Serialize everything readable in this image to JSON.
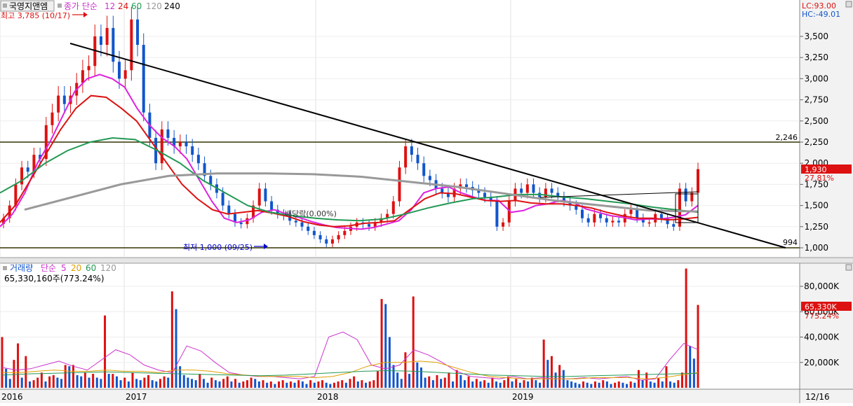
{
  "price_panel": {
    "stock_name": "국영지앤엠",
    "ma_label": "종가 단순",
    "ma_periods": [
      "12",
      "24",
      "60",
      "120",
      "240"
    ],
    "high_label": "최고 3,785 (10/17)",
    "low_label": "최저 1,000 (09/25)",
    "dividend_label": "배당락(0.00%)",
    "lc_label": "LC:93.00",
    "hc_label": "HC:-49.01",
    "current_price": "1,930",
    "current_change": "27.81%",
    "resistance_label": "2,246",
    "support_label": "994"
  },
  "volume_panel": {
    "title": "거래량",
    "ma_label": "단순",
    "ma_periods": [
      "5",
      "20",
      "60",
      "120"
    ],
    "current_volume": "65,330,160주(773.24%)",
    "current_box": "65,330K",
    "current_change": "773.24%"
  },
  "x_axis": {
    "labels": [
      "2016",
      "2017",
      "2018",
      "2019"
    ],
    "last_label": "12/16"
  },
  "colors": {
    "ma12": "#dd22dd",
    "ma24": "#dd1111",
    "ma60": "#229955",
    "ma120": "#999999",
    "up": "#dd1111",
    "down": "#1155cc",
    "trend": "#000000",
    "hline": "#333300"
  },
  "chart_data": [
    {
      "type": "candlestick",
      "period": "weekly",
      "x_range": [
        "2016-01",
        "2019-12-16"
      ],
      "ylim": [
        900,
        3950
      ],
      "y_ticks": [
        1000,
        1250,
        1500,
        1750,
        2000,
        2250,
        2500,
        2750,
        3000,
        3250,
        3500
      ],
      "close_series": [
        1350,
        1500,
        1750,
        1950,
        1900,
        2100,
        2050,
        2450,
        2600,
        2800,
        2700,
        2800,
        2950,
        3100,
        3150,
        3500,
        3400,
        3600,
        3200,
        3000,
        3100,
        3700,
        3400,
        2600,
        2300,
        2000,
        2400,
        2300,
        2200,
        2250,
        2200,
        2100,
        2000,
        1850,
        1750,
        1650,
        1500,
        1400,
        1300,
        1280,
        1350,
        1500,
        1700,
        1550,
        1450,
        1400,
        1380,
        1320,
        1300,
        1250,
        1200,
        1150,
        1100,
        1050,
        1100,
        1150,
        1200,
        1250,
        1300,
        1280,
        1250,
        1300,
        1350,
        1400,
        1550,
        1950,
        2200,
        2100,
        2000,
        1850,
        1800,
        1700,
        1650,
        1600,
        1700,
        1750,
        1720,
        1680,
        1650,
        1600,
        1550,
        1250,
        1300,
        1550,
        1700,
        1650,
        1750,
        1650,
        1600,
        1700,
        1650,
        1600,
        1550,
        1500,
        1450,
        1350,
        1300,
        1400,
        1350,
        1300,
        1320,
        1300,
        1400,
        1450,
        1350,
        1300,
        1300,
        1400,
        1350,
        1280,
        1250,
        1700,
        1550,
        1650,
        1930
      ],
      "series": [
        {
          "name": "12",
          "values": [
            1250,
            1400,
            1650,
            2000,
            2250,
            2550,
            2850,
            3000,
            3050,
            3000,
            2900,
            2650,
            2450,
            2300,
            2200,
            2050,
            1800,
            1550,
            1350,
            1300,
            1330,
            1420,
            1450,
            1400,
            1360,
            1310,
            1270,
            1240,
            1230,
            1220,
            1240,
            1280,
            1320,
            1450,
            1650,
            1700,
            1720,
            1650,
            1600,
            1560,
            1560,
            1420,
            1440,
            1500,
            1520,
            1560,
            1540,
            1460,
            1420,
            1380,
            1360,
            1330,
            1340,
            1340,
            1360,
            1390,
            1500
          ]
        },
        {
          "name": "24",
          "values": [
            1300,
            1500,
            1800,
            2100,
            2400,
            2650,
            2800,
            2780,
            2650,
            2500,
            2250,
            2000,
            1750,
            1580,
            1450,
            1400,
            1420,
            1440,
            1410,
            1370,
            1310,
            1270,
            1250,
            1260,
            1290,
            1300,
            1320,
            1450,
            1580,
            1650,
            1640,
            1600,
            1560,
            1550,
            1560,
            1530,
            1520,
            1520,
            1500,
            1470,
            1420,
            1380,
            1350,
            1350,
            1330,
            1340,
            1360
          ]
        },
        {
          "name": "60",
          "values": [
            1650,
            1800,
            2000,
            2150,
            2250,
            2300,
            2280,
            2150,
            2000,
            1800,
            1650,
            1500,
            1420,
            1380,
            1350,
            1330,
            1320,
            1340,
            1400,
            1470,
            1530,
            1580,
            1600,
            1630,
            1630,
            1600,
            1580,
            1550,
            1520,
            1480,
            1450,
            1420
          ]
        },
        {
          "name": "120",
          "values": [
            1450,
            1600,
            1750,
            1850,
            1880,
            1880,
            1870,
            1840,
            1780,
            1720,
            1640,
            1560,
            1500,
            1440,
            1430
          ]
        }
      ],
      "annotations": [
        {
          "text": "최고 3,785 (10/17)",
          "value": 3785
        },
        {
          "text": "최저 1,000 (09/25)",
          "value": 1000
        },
        {
          "text": "배당락(0.00%)"
        },
        {
          "text": "2,246",
          "value": 2246
        },
        {
          "text": "994",
          "value": 994
        },
        {
          "text": "1,930",
          "value": 1930
        },
        {
          "text": "27.81%"
        }
      ]
    },
    {
      "type": "bar",
      "title": "거래량",
      "ylim": [
        0,
        100000
      ],
      "y_ticks": [
        "20,000K",
        "40,000K",
        "60,000K",
        "80,000K"
      ],
      "tick_values": [
        20000,
        40000,
        60000,
        80000
      ],
      "values": [
        40000,
        15000,
        7000,
        22000,
        35000,
        8000,
        25000,
        5000,
        6000,
        8000,
        12000,
        5000,
        9000,
        10000,
        8000,
        7000,
        18000,
        17000,
        18000,
        10000,
        9000,
        12000,
        8000,
        11000,
        8000,
        7000,
        57000,
        11000,
        11000,
        9000,
        6000,
        8000,
        5000,
        12000,
        7000,
        6000,
        8000,
        10000,
        6000,
        5000,
        7000,
        9000,
        8000,
        76000,
        62000,
        17000,
        10000,
        8000,
        7000,
        6000,
        11000,
        7000,
        4000,
        8000,
        6000,
        5000,
        7000,
        9000,
        5000,
        7000,
        4000,
        5000,
        6000,
        8000,
        7000,
        5000,
        6000,
        4000,
        5000,
        3000,
        5000,
        6000,
        4000,
        5000,
        4000,
        6000,
        5000,
        3000,
        6000,
        4000,
        5000,
        6000,
        4000,
        3000,
        4000,
        5000,
        6000,
        4000,
        7000,
        9000,
        5000,
        6000,
        4000,
        5000,
        6000,
        13000,
        70000,
        66000,
        40000,
        18000,
        12000,
        7000,
        28000,
        11000,
        72000,
        20000,
        16000,
        8000,
        9000,
        6000,
        10000,
        7000,
        8000,
        12000,
        5000,
        14000,
        10000,
        6000,
        9000,
        5000,
        7000,
        5000,
        6000,
        4000,
        8000,
        5000,
        4000,
        6000,
        9000,
        5000,
        7000,
        4000,
        6000,
        5000,
        8000,
        6000,
        4000,
        38000,
        22000,
        25000,
        12000,
        18000,
        14000,
        6000,
        5000,
        4000,
        3000,
        5000,
        4000,
        3000,
        5000,
        4000,
        6000,
        5000,
        3000,
        4000,
        5000,
        4000,
        3000,
        5000,
        4000,
        14000,
        6000,
        12000,
        5000,
        4000,
        8000,
        5000,
        17000,
        5000,
        4000,
        6000,
        12000,
        94000,
        33000,
        23000,
        65330
      ],
      "series": [
        {
          "name": "5",
          "values": [
            16000,
            14000,
            15000,
            18000,
            21000,
            17000,
            14000,
            22000,
            30000,
            26000,
            18000,
            14000,
            12000,
            33000,
            29000,
            20000,
            12000,
            10000,
            9000,
            9000,
            8000,
            7000,
            9000,
            40000,
            44000,
            38000,
            18000,
            15000,
            18000,
            30000,
            26000,
            20000,
            13000,
            9000,
            8000,
            7000,
            9000,
            7000,
            8000,
            7000,
            7000,
            8000,
            7000,
            8000,
            9000,
            6000,
            7000,
            22000,
            35000,
            30000
          ]
        },
        {
          "name": "20",
          "values": [
            12000,
            12000,
            13000,
            14000,
            13000,
            13000,
            14000,
            13000,
            13000,
            12000,
            14000,
            14000,
            13000,
            11000,
            10000,
            9000,
            9000,
            9000,
            8000,
            9000,
            12000,
            17000,
            20000,
            20000,
            21000,
            20000,
            16000,
            12000,
            9000,
            8000,
            7000,
            7000,
            7000,
            7000,
            8000,
            8000,
            8000,
            7000,
            8000,
            10000,
            12000
          ]
        },
        {
          "name": "60",
          "values": [
            10000,
            11000,
            11500,
            12000,
            12500,
            12000,
            11500,
            11000,
            10500,
            10000,
            9500,
            10000,
            11000,
            12000,
            13000,
            13500,
            13000,
            12000,
            11000,
            10000,
            9500,
            9000,
            9000,
            9500,
            10000,
            10500,
            11000,
            11500
          ]
        }
      ]
    }
  ]
}
